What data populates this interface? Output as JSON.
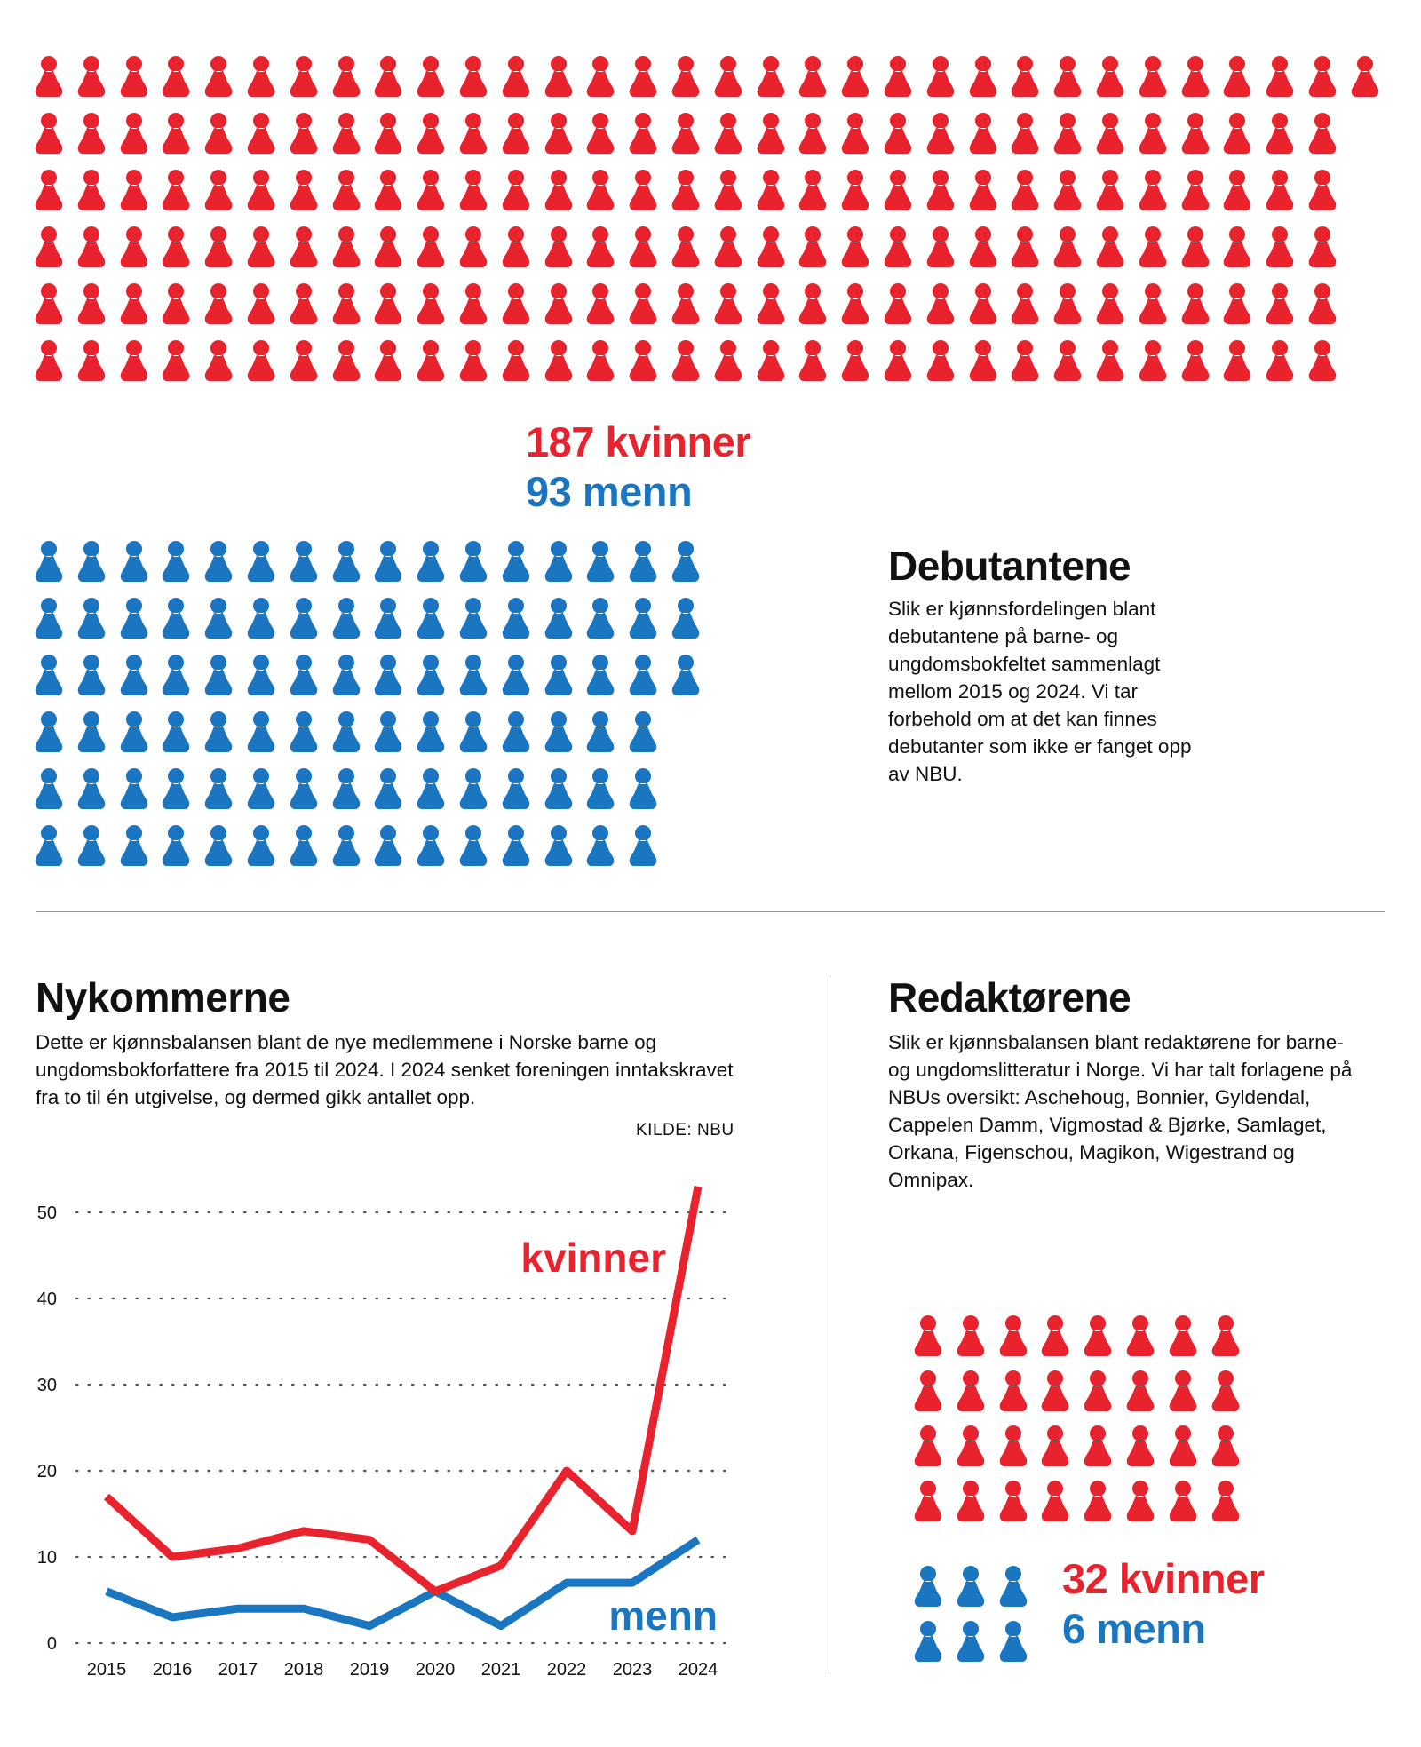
{
  "colors": {
    "kvinner": "#e8232d",
    "menn": "#1a76c0",
    "grid": "#555555"
  },
  "debutantene": {
    "kvinner_count": 187,
    "menn_count": 93,
    "kvinner_label": "187 kvinner",
    "menn_label": "93 menn",
    "title": "Debutantene",
    "text": "Slik er kjønnsfordelingen blant debutantene på barne- og ungdomsbokfeltet sammenlagt mellom 2015 og 2024. Vi tar forbehold om at det kan finnes debutanter som ikke er fanget opp av NBU."
  },
  "nykommerne": {
    "title": "Nykommerne",
    "text": "Dette er kjønnsbalansen blant de nye medlemmene i Norske barne og ungdomsbokforfattere fra 2015 til 2024. I 2024 senket foreningen inntakskravet fra to til én utgivelse, og dermed gikk antallet opp.",
    "source": "KILDE: NBU"
  },
  "redaktorene": {
    "title": "Redaktørene",
    "text": "Slik er kjønnsbalansen blant redaktørene for barne- og ungdomslitteratur i Norge. Vi har talt forlagene på NBUs oversikt: Aschehoug, Bonnier, Gyldendal, Cappelen Damm, Vigmostad & Bjørke, Samlaget, Orkana, Figenschou, Magikon, Wigestrand og Omnipax.",
    "kvinner_count": 32,
    "menn_count": 6,
    "kvinner_label": "32 kvinner",
    "menn_label": "6 menn"
  },
  "chart_data": {
    "type": "line",
    "x": [
      2015,
      2016,
      2017,
      2018,
      2019,
      2020,
      2021,
      2022,
      2023,
      2024
    ],
    "series": [
      {
        "name": "kvinner",
        "color": "#e8232d",
        "values": [
          17,
          10,
          11,
          13,
          12,
          6,
          9,
          20,
          13,
          53
        ]
      },
      {
        "name": "menn",
        "color": "#1a76c0",
        "values": [
          6,
          3,
          4,
          4,
          2,
          6,
          2,
          7,
          7,
          12
        ]
      }
    ],
    "ylim": [
      0,
      53
    ],
    "yticks": [
      0,
      10,
      20,
      30,
      40,
      50
    ],
    "grid": "dotted horizontal",
    "xlabel": "",
    "ylabel": ""
  }
}
